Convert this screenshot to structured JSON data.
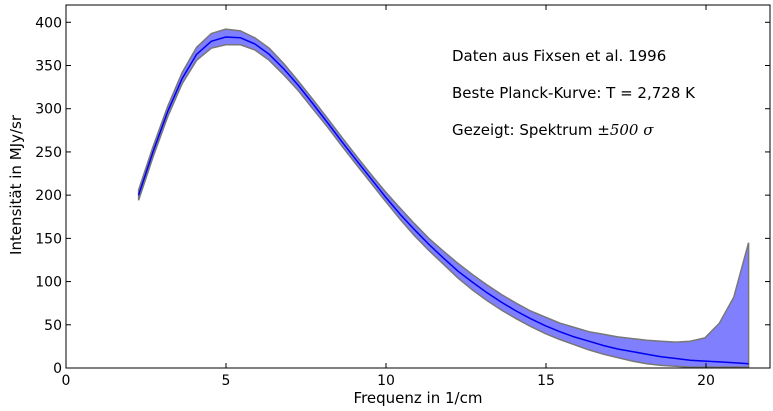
{
  "chart_data": {
    "type": "line",
    "xlabel": "Frequenz in 1/cm",
    "ylabel": "Intensität in MJy/sr",
    "xlim": [
      0,
      22
    ],
    "ylim": [
      0,
      420
    ],
    "xticks": [
      "0",
      "5",
      "10",
      "15",
      "20"
    ],
    "xtick_values": [
      0,
      5,
      10,
      15,
      20
    ],
    "yticks": [
      "0",
      "50",
      "100",
      "150",
      "200",
      "250",
      "300",
      "350",
      "400"
    ],
    "ytick_values": [
      0,
      50,
      100,
      150,
      200,
      250,
      300,
      350,
      400
    ],
    "grid": false,
    "colors": {
      "line": "#0000ee",
      "band_fill": "#8080ff",
      "band_edge": "#777777"
    },
    "annotations": [
      {
        "text": "Daten aus Fixsen et al. 1996"
      },
      {
        "text": "Beste Planck-Kurve: T = 2,728 K"
      },
      {
        "text": "Gezeigt: Spektrum ±500 σ",
        "prefix": "Gezeigt: Spektrum ",
        "suffix": "±500 σ"
      }
    ],
    "series": [
      {
        "x": [
          2.27,
          2.72,
          3.18,
          3.63,
          4.08,
          4.54,
          4.99,
          5.45,
          5.9,
          6.35,
          6.81,
          7.26,
          7.71,
          8.17,
          8.62,
          9.08,
          9.53,
          9.98,
          10.44,
          10.89,
          11.34,
          11.8,
          12.25,
          12.71,
          13.16,
          13.61,
          14.07,
          14.52,
          14.97,
          15.43,
          15.88,
          16.34,
          16.79,
          17.24,
          17.7,
          18.15,
          18.6,
          19.06,
          19.51,
          19.97,
          20.42,
          20.87,
          21.33
        ],
        "y": [
          200,
          250,
          297,
          335,
          363,
          378,
          383,
          382,
          375,
          363,
          346,
          327,
          306,
          284,
          262,
          240,
          219,
          198,
          178,
          160,
          143,
          127,
          112,
          99,
          87,
          76,
          66,
          57,
          49,
          42,
          36,
          31,
          26,
          22,
          19,
          16,
          13,
          11,
          9,
          8,
          7,
          6,
          5
        ]
      },
      {
        "name": "",
        "x": [
          2.27,
          2.72,
          3.18,
          3.63,
          4.08,
          4.54,
          4.99,
          5.45,
          5.9,
          6.35,
          6.81,
          7.26,
          7.71,
          8.17,
          8.62,
          9.08,
          9.53,
          9.98,
          10.44,
          10.89,
          11.34,
          11.8,
          12.25,
          12.71,
          13.16,
          13.61,
          14.07,
          14.52,
          14.97,
          15.43,
          15.88,
          16.34,
          16.79,
          17.24,
          17.7,
          18.15,
          18.6,
          19.06,
          19.51,
          19.97,
          20.42,
          20.87,
          21.33
        ],
        "y_upper": [
          206,
          256,
          303,
          342,
          371,
          387,
          392,
          390,
          382,
          370,
          352,
          332,
          311,
          289,
          267,
          245,
          224,
          204,
          185,
          167,
          150,
          135,
          121,
          108,
          96,
          85,
          75,
          66,
          59,
          52,
          47,
          42,
          39,
          36,
          34,
          32,
          31,
          30,
          31,
          35,
          52,
          82,
          145
        ],
        "y_lower": [
          194,
          244,
          291,
          329,
          356,
          370,
          374,
          374,
          368,
          356,
          339,
          321,
          300,
          279,
          257,
          235,
          214,
          193,
          172,
          153,
          136,
          120,
          104,
          90,
          78,
          67,
          57,
          48,
          40,
          33,
          27,
          21,
          16,
          12,
          8,
          5,
          3,
          2,
          1,
          1,
          1,
          1,
          1
        ]
      }
    ]
  }
}
